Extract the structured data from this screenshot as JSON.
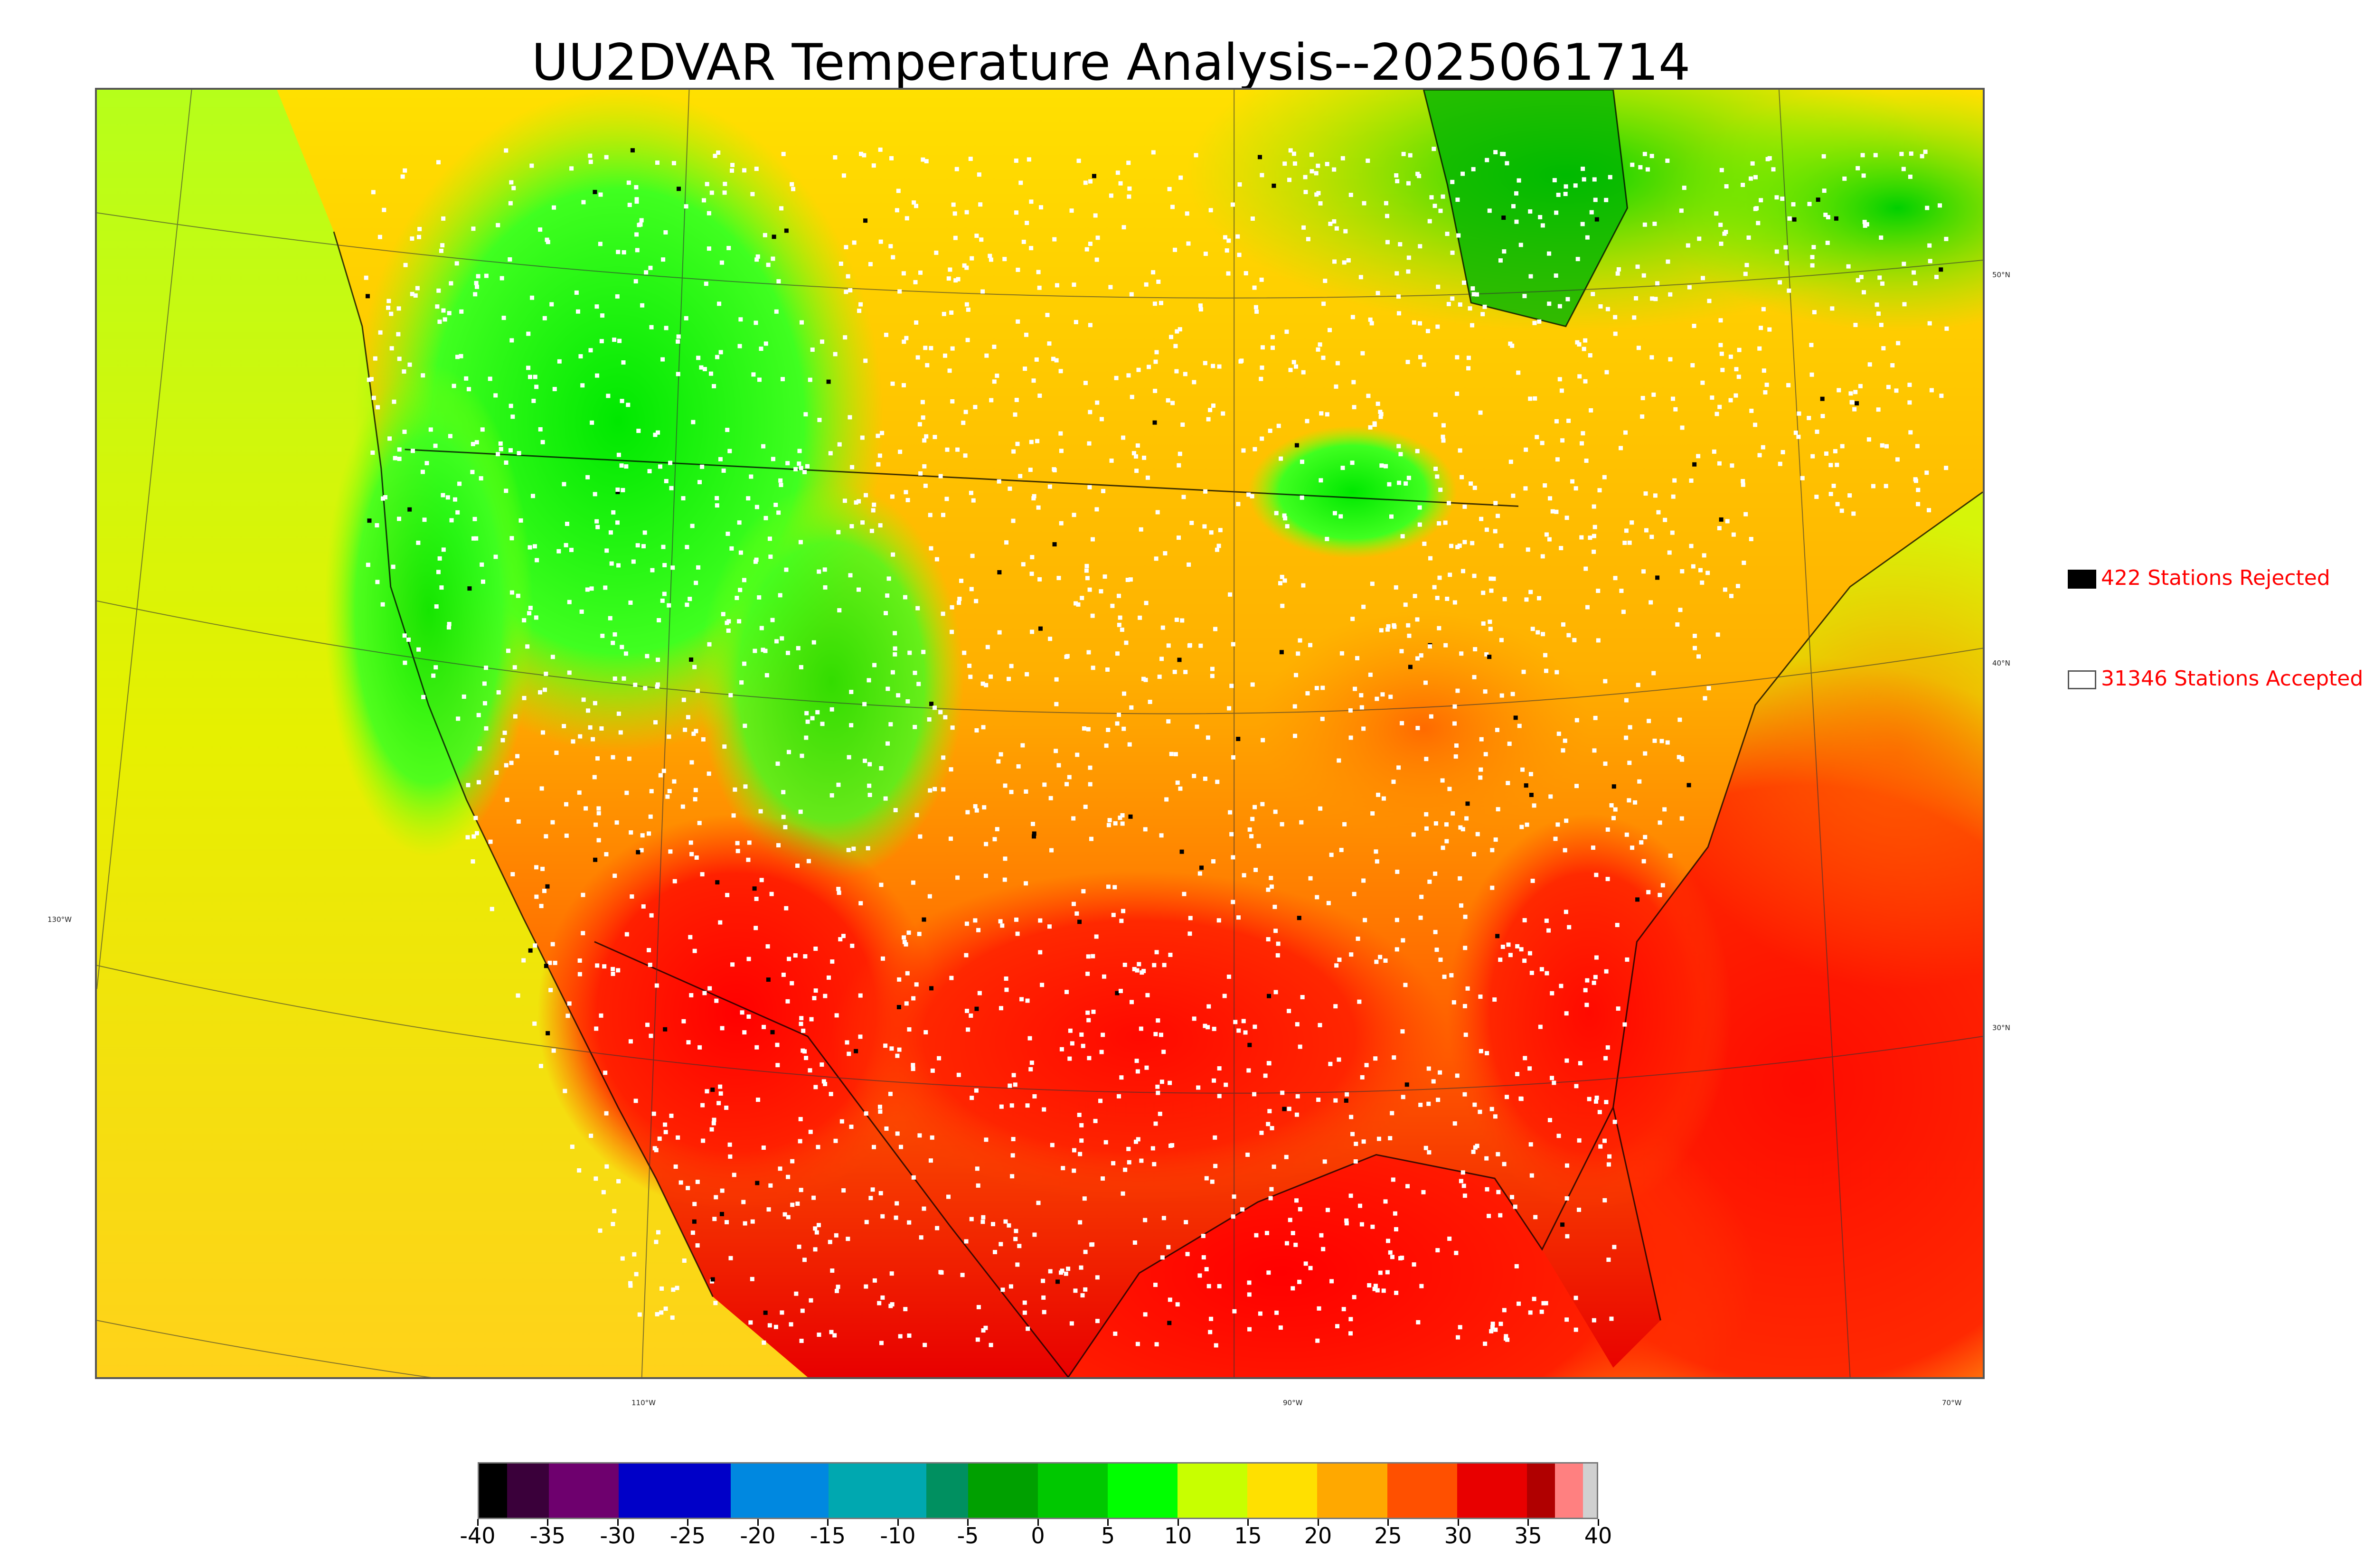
{
  "title": "UU2DVAR Temperature Analysis--2025061714",
  "legend": {
    "rejected": {
      "label": "422 Stations Rejected",
      "swatch_color": "#000000"
    },
    "accepted": {
      "label": "31346 Stations Accepted",
      "swatch_color": "#ffffff"
    }
  },
  "lat_labels": [
    "50°N",
    "40°N",
    "30°N"
  ],
  "lon_labels": [
    "130°W",
    "110°W",
    "90°W",
    "70°W"
  ],
  "colorbar": {
    "unit_range": [
      -40,
      40
    ],
    "tick_labels": [
      "-40",
      "-35",
      "-30",
      "-25",
      "-20",
      "-15",
      "-10",
      "-5",
      "0",
      "5",
      "10",
      "15",
      "20",
      "25",
      "30",
      "35",
      "40"
    ],
    "colors": [
      {
        "from": -40,
        "to": -38,
        "color": "#000000"
      },
      {
        "from": -38,
        "to": -35,
        "color": "#3a003a"
      },
      {
        "from": -35,
        "to": -30,
        "color": "#6e006e"
      },
      {
        "from": -30,
        "to": -22,
        "color": "#0000c8"
      },
      {
        "from": -22,
        "to": -15,
        "color": "#0088e0"
      },
      {
        "from": -15,
        "to": -8,
        "color": "#00a8b0"
      },
      {
        "from": -8,
        "to": -5,
        "color": "#009060"
      },
      {
        "from": -5,
        "to": 0,
        "color": "#00a000"
      },
      {
        "from": 0,
        "to": 5,
        "color": "#00c800"
      },
      {
        "from": 5,
        "to": 10,
        "color": "#00ff00"
      },
      {
        "from": 10,
        "to": 15,
        "color": "#c8ff00"
      },
      {
        "from": 15,
        "to": 20,
        "color": "#ffe000"
      },
      {
        "from": 20,
        "to": 25,
        "color": "#ffa800"
      },
      {
        "from": 25,
        "to": 30,
        "color": "#ff5000"
      },
      {
        "from": 30,
        "to": 35,
        "color": "#e80000"
      },
      {
        "from": 35,
        "to": 37,
        "color": "#b00000"
      },
      {
        "from": 37,
        "to": 39,
        "color": "#ff8080"
      },
      {
        "from": 39,
        "to": 40,
        "color": "#d0d0d0"
      }
    ]
  }
}
